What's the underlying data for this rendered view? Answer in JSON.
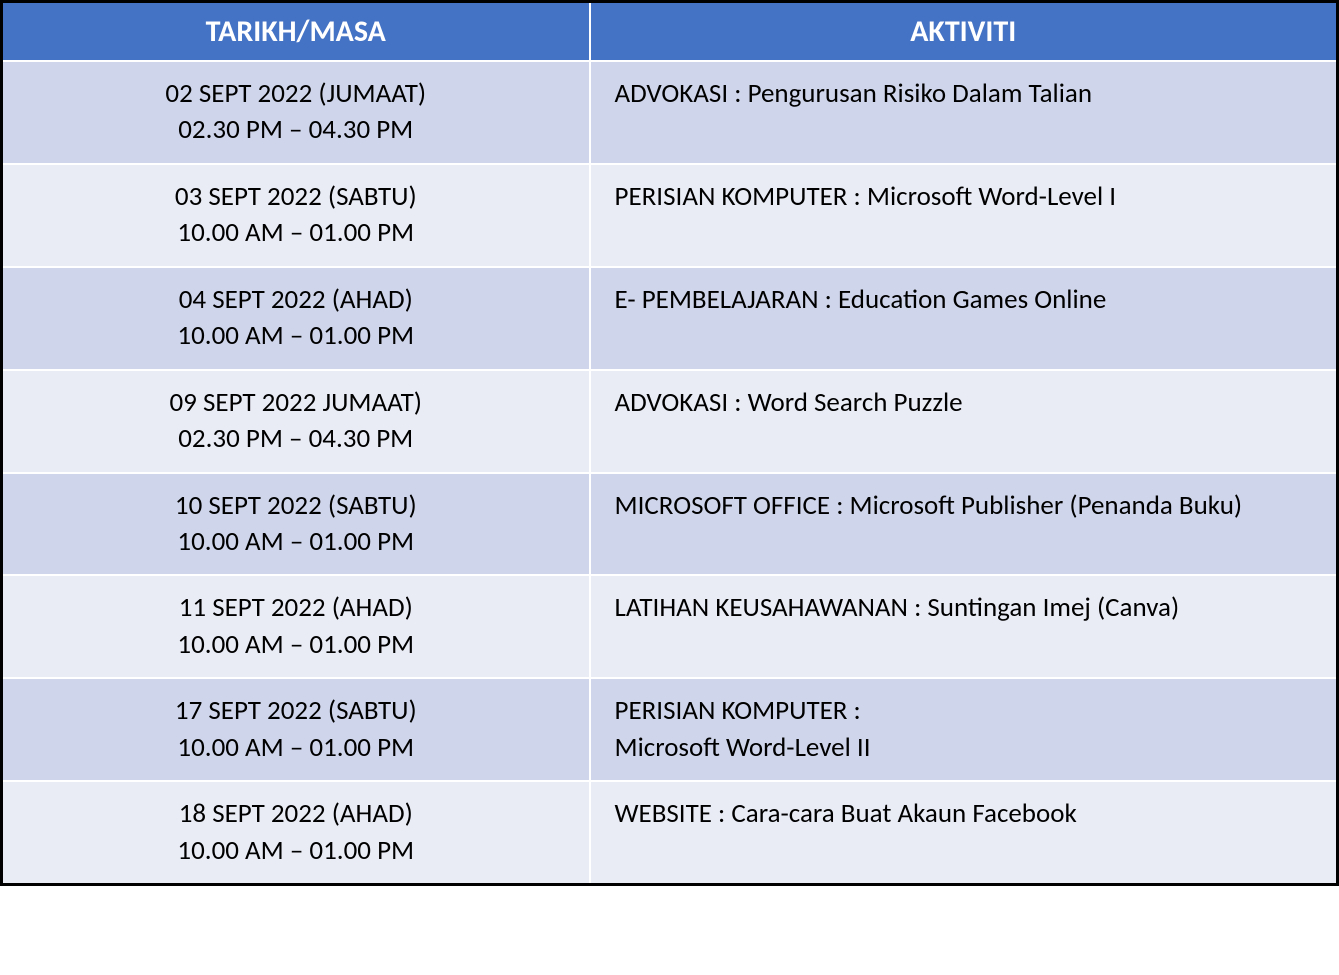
{
  "table": {
    "headers": {
      "date": "TARIKH/MASA",
      "activity": "AKTIVITI"
    },
    "colors": {
      "header_bg": "#4472c4",
      "header_text": "#ffffff",
      "row_odd_bg": "#cfd5ea",
      "row_even_bg": "#e9ebf5",
      "cell_text": "#000000",
      "cell_border": "#ffffff",
      "outer_border": "#000000"
    },
    "font": {
      "family": "Calibri",
      "header_size_pt": 22,
      "body_size_pt": 20
    },
    "col_widths_pct": [
      44,
      56
    ],
    "rows": [
      {
        "date": "02 SEPT 2022 (JUMAAT)",
        "time": "02.30 PM – 04.30 PM",
        "activity": "ADVOKASI : Pengurusan Risiko Dalam Talian"
      },
      {
        "date": "03 SEPT 2022 (SABTU)",
        "time": "10.00 AM – 01.00 PM",
        "activity": "PERISIAN KOMPUTER :  Microsoft Word-Level I"
      },
      {
        "date": "04 SEPT 2022 (AHAD)",
        "time": "10.00 AM – 01.00 PM",
        "activity": "E- PEMBELAJARAN : Education Games Online"
      },
      {
        "date": "09 SEPT 2022 JUMAAT)",
        "time": "02.30 PM – 04.30 PM",
        "activity": "ADVOKASI : Word Search Puzzle"
      },
      {
        "date": "10 SEPT 2022 (SABTU)",
        "time": "10.00 AM – 01.00 PM",
        "activity": "MICROSOFT OFFICE : Microsoft Publisher (Penanda Buku)"
      },
      {
        "date": "11 SEPT 2022 (AHAD)",
        "time": "10.00 AM – 01.00 PM",
        "activity": "LATIHAN KEUSAHAWANAN : Suntingan Imej (Canva)"
      },
      {
        "date": "17 SEPT 2022 (SABTU)",
        "time": "10.00 AM – 01.00 PM",
        "activity": "PERISIAN KOMPUTER :\nMicrosoft Word-Level II"
      },
      {
        "date": "18 SEPT 2022 (AHAD)",
        "time": "10.00 AM – 01.00 PM",
        "activity": "WEBSITE : Cara-cara Buat Akaun Facebook"
      }
    ]
  }
}
